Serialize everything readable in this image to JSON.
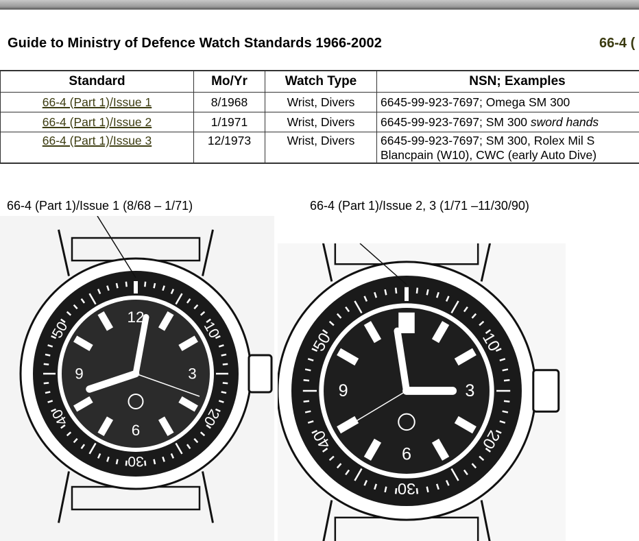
{
  "header": {
    "title": "Guide to Ministry of Defence Watch Standards 1966-2002",
    "code": "66-4 ("
  },
  "table": {
    "columns": [
      "Standard",
      "Mo/Yr",
      "Watch Type",
      "NSN; Examples"
    ],
    "rows": [
      {
        "standard": "66-4 (Part 1)/Issue 1",
        "date": "8/1968",
        "type": "Wrist, Divers",
        "nsn": "6645-99-923-7697; Omega SM 300",
        "nsn_italic": "",
        "nsn_line2": ""
      },
      {
        "standard": "66-4 (Part 1)/Issue 2",
        "date": "1/1971",
        "type": "Wrist, Divers",
        "nsn": "6645-99-923-7697; SM 300 ",
        "nsn_italic": "sword hands",
        "nsn_line2": ""
      },
      {
        "standard": "66-4 (Part 1)/Issue 3",
        "date": "12/1973",
        "type": "Wrist, Divers",
        "nsn": "6645-99-923-7697; SM 300, Rolex Mil S",
        "nsn_italic": "",
        "nsn_line2": "Blancpain (W10), CWC (early Auto Dive)"
      }
    ]
  },
  "figures": [
    {
      "caption": "66-4 (Part 1)/Issue 1 (8/68 – 1/71)",
      "dial": [
        "12",
        "3",
        "6",
        "9"
      ],
      "bezel": [
        "10",
        "20",
        "30",
        "40",
        "50"
      ]
    },
    {
      "caption": "66-4 (Part 1)/Issue 2, 3 (1/71 –11/30/90)",
      "dial": [
        "3",
        "6",
        "9"
      ],
      "bezel": [
        "10",
        "20",
        "30",
        "40",
        "50"
      ]
    }
  ],
  "colors": {
    "link": "#3d3d12",
    "ink": "#000000"
  }
}
